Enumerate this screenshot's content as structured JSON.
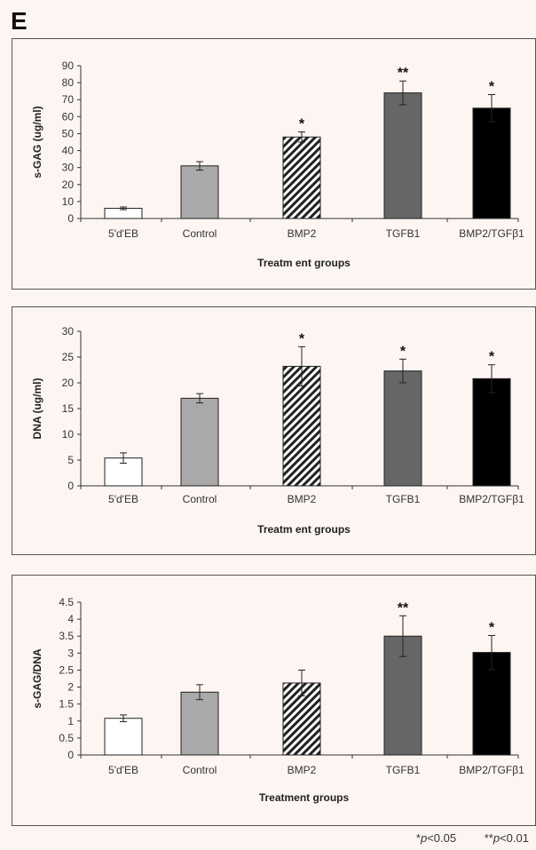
{
  "panel_label": "E",
  "colors": {
    "bar_white": "#ffffff",
    "bar_light": "#a9a9a9",
    "bar_hatch": "#222222",
    "bar_dark": "#666666",
    "bar_black": "#000000",
    "axis": "#333333",
    "background": "#fdf5f2"
  },
  "chart_data": [
    {
      "type": "bar",
      "categories": [
        "5'd'EB",
        "Control",
        "BMP2",
        "TGFB1",
        "BMP2/TGFβ1"
      ],
      "values": [
        6,
        31,
        48,
        74,
        65
      ],
      "errors": [
        0.8,
        2.5,
        3,
        7,
        8
      ],
      "significance": [
        "",
        "",
        "*",
        "**",
        "*"
      ],
      "ylabel": "s-GAG (ug/ml)",
      "xlabel": "Treatm ent groups",
      "ylim": [
        0,
        90
      ],
      "yticks": [
        0,
        10,
        20,
        30,
        40,
        50,
        60,
        70,
        80,
        90
      ],
      "ytick_labels": [
        "0",
        "10",
        "20",
        "30",
        "40",
        "50",
        "60",
        "70",
        "80",
        "90"
      ],
      "grid": false
    },
    {
      "type": "bar",
      "categories": [
        "5'd'EB",
        "Control",
        "BMP2",
        "TGFB1",
        "BMP2/TGFβ1"
      ],
      "values": [
        5.4,
        17,
        23.2,
        22.3,
        20.8
      ],
      "errors": [
        1,
        0.9,
        3.8,
        2.3,
        2.7
      ],
      "significance": [
        "",
        "",
        "*",
        "*",
        "*"
      ],
      "ylabel": "DNA (ug/ml)",
      "xlabel": "Treatm ent groups",
      "ylim": [
        0,
        30
      ],
      "yticks": [
        0,
        5,
        10,
        15,
        20,
        25,
        30
      ],
      "ytick_labels": [
        "0",
        "5",
        "10",
        "15",
        "20",
        "25",
        "30"
      ],
      "grid": false
    },
    {
      "type": "bar",
      "categories": [
        "5'd'EB",
        "Control",
        "BMP2",
        "TGFB1",
        "BMP2/TGFβ1"
      ],
      "values": [
        1.08,
        1.85,
        2.12,
        3.5,
        3.02
      ],
      "errors": [
        0.1,
        0.22,
        0.38,
        0.6,
        0.5
      ],
      "significance": [
        "",
        "",
        "",
        "**",
        "*"
      ],
      "ylabel": "s-GAG/DNA",
      "xlabel": "Treatment groups",
      "ylim": [
        0,
        4.5
      ],
      "yticks": [
        0,
        0.5,
        1,
        1.5,
        2,
        2.5,
        3,
        3.5,
        4,
        4.5
      ],
      "ytick_labels": [
        "0",
        "0.5",
        "1",
        "1.5",
        "2",
        "2.5",
        "3",
        "3.5",
        "4",
        "4.5"
      ],
      "grid": false
    }
  ],
  "footnote": {
    "p05_prefix": "*",
    "p05_var": "p",
    "p05_rest": "<0.05",
    "p01_prefix": "**",
    "p01_var": "p",
    "p01_rest": "<0.01"
  }
}
